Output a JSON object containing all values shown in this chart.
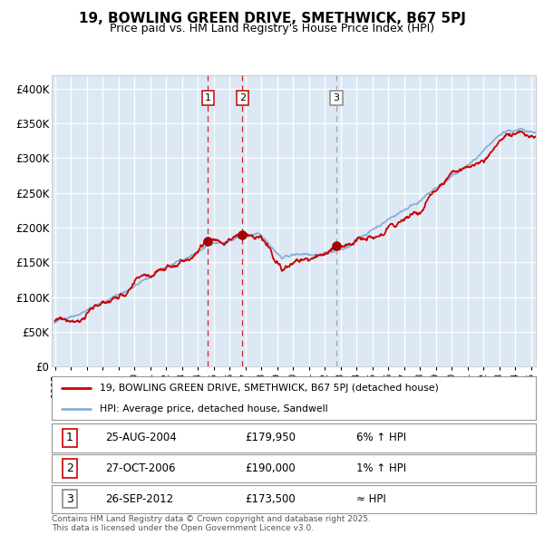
{
  "title": "19, BOWLING GREEN DRIVE, SMETHWICK, B67 5PJ",
  "subtitle": "Price paid vs. HM Land Registry's House Price Index (HPI)",
  "bg_color": "#dce9f5",
  "hpi_color": "#8ab0d4",
  "price_color": "#cc0000",
  "ylim": [
    0,
    420000
  ],
  "yticks": [
    0,
    50000,
    100000,
    150000,
    200000,
    250000,
    300000,
    350000,
    400000
  ],
  "ytick_labels": [
    "£0",
    "£50K",
    "£100K",
    "£150K",
    "£200K",
    "£250K",
    "£300K",
    "£350K",
    "£400K"
  ],
  "xstart": 1995.0,
  "xend": 2025.3,
  "sale_dates": [
    2004.65,
    2006.82,
    2012.73
  ],
  "sale_prices": [
    179950,
    190000,
    173500
  ],
  "sale_labels": [
    "1",
    "2",
    "3"
  ],
  "sale_label_colors": [
    "#cc0000",
    "#cc0000",
    "#888888"
  ],
  "legend_label_red": "19, BOWLING GREEN DRIVE, SMETHWICK, B67 5PJ (detached house)",
  "legend_label_blue": "HPI: Average price, detached house, Sandwell",
  "table_rows": [
    {
      "num": "1",
      "date": "25-AUG-2004",
      "price": "£179,950",
      "hpi": "6% ↑ HPI"
    },
    {
      "num": "2",
      "date": "27-OCT-2006",
      "price": "£190,000",
      "hpi": "1% ↑ HPI"
    },
    {
      "num": "3",
      "date": "26-SEP-2012",
      "price": "£173,500",
      "hpi": "≈ HPI"
    }
  ],
  "footnote": "Contains HM Land Registry data © Crown copyright and database right 2025.\nThis data is licensed under the Open Government Licence v3.0."
}
